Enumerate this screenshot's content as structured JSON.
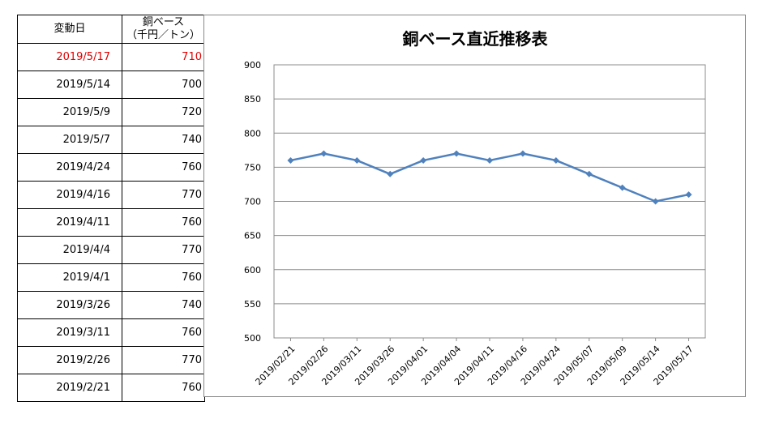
{
  "table": {
    "header": {
      "col1": "変動日",
      "col2_line1": "銅ベース",
      "col2_line2": "（千円／トン）"
    },
    "rows": [
      {
        "date": "2019/5/17",
        "value": "710",
        "highlight": true
      },
      {
        "date": "2019/5/14",
        "value": "700"
      },
      {
        "date": "2019/5/9",
        "value": "720"
      },
      {
        "date": "2019/5/7",
        "value": "740"
      },
      {
        "date": "2019/4/24",
        "value": "760"
      },
      {
        "date": "2019/4/16",
        "value": "770"
      },
      {
        "date": "2019/4/11",
        "value": "760"
      },
      {
        "date": "2019/4/4",
        "value": "770"
      },
      {
        "date": "2019/4/1",
        "value": "760"
      },
      {
        "date": "2019/3/26",
        "value": "740"
      },
      {
        "date": "2019/3/11",
        "value": "760"
      },
      {
        "date": "2019/2/26",
        "value": "770"
      },
      {
        "date": "2019/2/21",
        "value": "760"
      }
    ],
    "highlight_color": "#e00000"
  },
  "chart_data": {
    "type": "line",
    "title": "銅ベース直近推移表",
    "xlabel": "",
    "ylabel": "",
    "categories": [
      "2019/02/21",
      "2019/02/26",
      "2019/03/11",
      "2019/03/26",
      "2019/04/01",
      "2019/04/04",
      "2019/04/11",
      "2019/04/16",
      "2019/04/24",
      "2019/05/07",
      "2019/05/09",
      "2019/05/14",
      "2019/05/17"
    ],
    "series": [
      {
        "values": [
          760,
          770,
          760,
          740,
          760,
          770,
          760,
          770,
          760,
          740,
          720,
          700,
          710
        ],
        "color": "#4f81bd",
        "marker": "diamond"
      }
    ],
    "ylim": [
      500,
      900
    ],
    "yticks": [
      500,
      550,
      600,
      650,
      700,
      750,
      800,
      850,
      900
    ],
    "grid": "horizontal",
    "legend": "none"
  }
}
